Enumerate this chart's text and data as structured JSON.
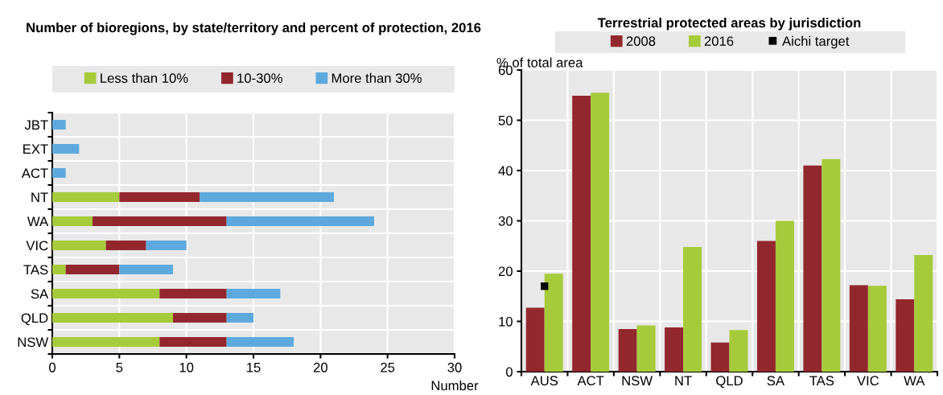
{
  "chart_data": [
    {
      "type": "bar",
      "orientation": "horizontal",
      "stacked": true,
      "title": "Number of bioregions, by state/territory and percent of protection, 2016",
      "xlabel": "Number",
      "categories": [
        "JBT",
        "EXT",
        "ACT",
        "NT",
        "WA",
        "VIC",
        "TAS",
        "SA",
        "QLD",
        "NSW"
      ],
      "series": [
        {
          "name": "Less than 10%",
          "color": "#a6cb3a",
          "values": [
            0,
            0,
            0,
            5,
            3,
            4,
            1,
            8,
            9,
            8
          ]
        },
        {
          "name": "10-30%",
          "color": "#93272e",
          "values": [
            0,
            0,
            0,
            6,
            10,
            3,
            4,
            5,
            4,
            5
          ]
        },
        {
          "name": "More than 30%",
          "color": "#5da9dd",
          "values": [
            1,
            2,
            1,
            10,
            11,
            3,
            4,
            4,
            2,
            5
          ]
        }
      ],
      "xlim": [
        0,
        30
      ],
      "xticks": [
        0,
        5,
        10,
        15,
        20,
        25,
        30
      ],
      "grid": true,
      "legend": "top"
    },
    {
      "type": "bar",
      "title": "Terrestrial protected areas by jurisdiction",
      "ylabel": "% of total area",
      "categories": [
        "AUS",
        "ACT",
        "NSW",
        "NT",
        "QLD",
        "SA",
        "TAS",
        "VIC",
        "WA"
      ],
      "series": [
        {
          "name": "2008",
          "color": "#93272e",
          "values": [
            12.7,
            54.9,
            8.5,
            8.8,
            5.8,
            26.0,
            41.0,
            17.2,
            14.4
          ]
        },
        {
          "name": "2016",
          "color": "#a6cb3a",
          "values": [
            19.5,
            55.5,
            9.2,
            24.8,
            8.3,
            30.0,
            42.3,
            17.1,
            23.2
          ]
        },
        {
          "name": "Aichi target",
          "type": "scatter",
          "marker": "square",
          "color": "#000000",
          "values": [
            17.0,
            null,
            null,
            null,
            null,
            null,
            null,
            null,
            null
          ]
        }
      ],
      "ylim": [
        0,
        60
      ],
      "yticks": [
        0,
        10,
        20,
        30,
        40,
        50,
        60
      ],
      "grid": true,
      "legend": "top"
    }
  ]
}
